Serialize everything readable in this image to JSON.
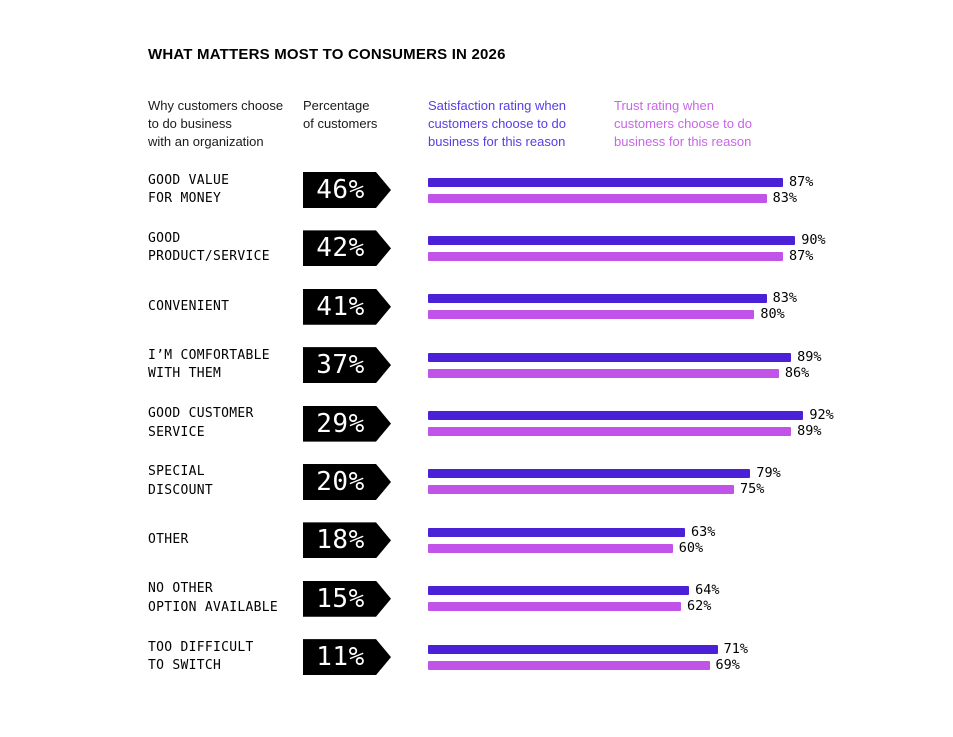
{
  "title": "WHAT MATTERS MOST TO CONSUMERS IN 2026",
  "column_headers": {
    "reason": "Why customers choose\nto do business\nwith an organization",
    "percentage": "Percentage\nof customers",
    "satisfaction": "Satisfaction rating when\ncustomers choose to do\nbusiness for this reason",
    "trust": "Trust rating when\ncustomers choose to do\nbusiness for this reason"
  },
  "colors": {
    "satisfaction_bar": "#4B21D8",
    "trust_bar": "#C253E8",
    "satisfaction_header": "#5B3BE3",
    "trust_header": "#C865E8",
    "badge_background": "#000000",
    "badge_text": "#FFFFFF",
    "text": "#000000",
    "background": "#FFFFFF"
  },
  "rows": [
    {
      "label": "GOOD VALUE\nFOR MONEY",
      "pct": "46%",
      "satisfaction": 87,
      "trust": 83
    },
    {
      "label": "GOOD\nPRODUCT/SERVICE",
      "pct": "42%",
      "satisfaction": 90,
      "trust": 87
    },
    {
      "label": "CONVENIENT",
      "pct": "41%",
      "satisfaction": 83,
      "trust": 80
    },
    {
      "label": "I’M COMFORTABLE\nWITH THEM",
      "pct": "37%",
      "satisfaction": 89,
      "trust": 86
    },
    {
      "label": "GOOD CUSTOMER\nSERVICE",
      "pct": "29%",
      "satisfaction": 92,
      "trust": 89
    },
    {
      "label": "SPECIAL\nDISCOUNT",
      "pct": "20%",
      "satisfaction": 79,
      "trust": 75
    },
    {
      "label": "OTHER",
      "pct": "18%",
      "satisfaction": 63,
      "trust": 60
    },
    {
      "label": "NO OTHER\nOPTION AVAILABLE",
      "pct": "15%",
      "satisfaction": 64,
      "trust": 62
    },
    {
      "label": "TOO DIFFICULT\nTO SWITCH",
      "pct": "11%",
      "satisfaction": 71,
      "trust": 69
    }
  ],
  "chart_data": {
    "type": "bar",
    "orientation": "horizontal",
    "title": "WHAT MATTERS MOST TO CONSUMERS IN 2026",
    "categories": [
      "GOOD VALUE FOR MONEY",
      "GOOD PRODUCT/SERVICE",
      "CONVENIENT",
      "I’M COMFORTABLE WITH THEM",
      "GOOD CUSTOMER SERVICE",
      "SPECIAL DISCOUNT",
      "OTHER",
      "NO OTHER OPTION AVAILABLE",
      "TOO DIFFICULT TO SWITCH"
    ],
    "series": [
      {
        "name": "Percentage of customers",
        "values": [
          46,
          42,
          41,
          37,
          29,
          20,
          18,
          15,
          11
        ],
        "color": "#000000",
        "unit": "%"
      },
      {
        "name": "Satisfaction rating when customers choose to do business for this reason",
        "values": [
          87,
          90,
          83,
          89,
          92,
          79,
          63,
          64,
          71
        ],
        "color": "#4B21D8",
        "unit": "%"
      },
      {
        "name": "Trust rating when customers choose to do business for this reason",
        "values": [
          83,
          87,
          80,
          86,
          89,
          75,
          60,
          62,
          69
        ],
        "color": "#C253E8",
        "unit": "%"
      }
    ],
    "xlim": [
      0,
      100
    ],
    "grid": false,
    "legend_position": "column-headers",
    "value_labels": "end-of-bar"
  }
}
